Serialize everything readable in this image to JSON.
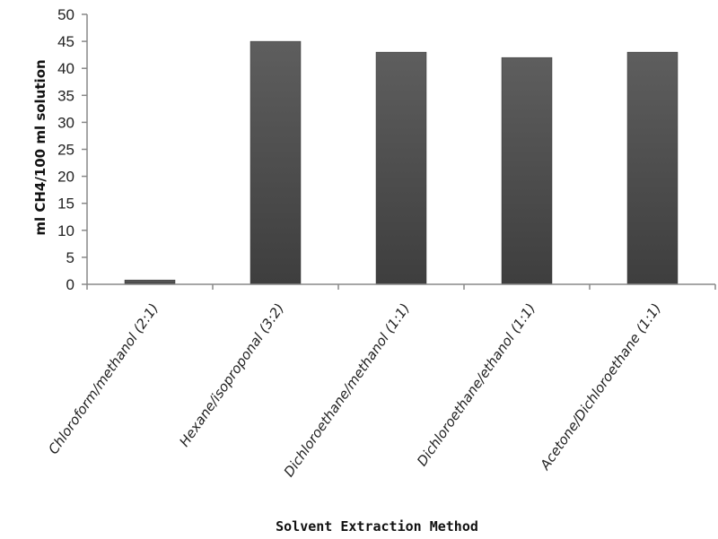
{
  "chart_data": {
    "type": "bar",
    "title": "",
    "xlabel": "Solvent Extraction Method",
    "ylabel": "ml CH4/100 ml solution",
    "ylim": [
      0,
      50
    ],
    "yticks": [
      0,
      5,
      10,
      15,
      20,
      25,
      30,
      35,
      40,
      45,
      50
    ],
    "categories": [
      "Chloroform/methanol (2:1)",
      "Hexane/isoproponal (3:2)",
      "Dichloroethane/methanol (1:1)",
      "Dichloroethane/ethanol (1:1)",
      "Acetone/Dichloroethane (1:1)"
    ],
    "values": [
      0.8,
      45,
      43,
      42,
      43
    ],
    "grid": false,
    "legend": "none",
    "bar_color": "#4d4d4d"
  }
}
